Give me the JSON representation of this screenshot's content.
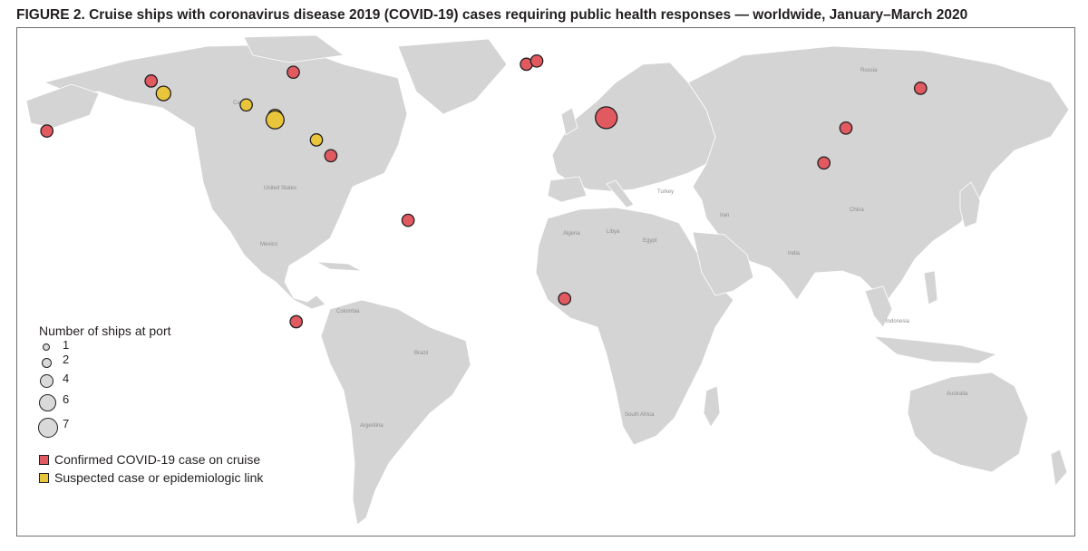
{
  "title": "FIGURE 2. Cruise ships with coronavirus disease 2019 (COVID-19) cases requiring public health responses — worldwide, January–March 2020",
  "colors": {
    "ocean": "#ffffff",
    "land": "#d4d4d4",
    "border": "#ffffff",
    "confirmed": "#e05a60",
    "suspected": "#e8c53a",
    "outline": "#231f20"
  },
  "country_labels": [
    "Canada",
    "United States",
    "Mexico",
    "Colombia",
    "Brazil",
    "Argentina",
    "Russia",
    "China",
    "India",
    "Egypt",
    "Libya",
    "Algeria",
    "Turkey",
    "Iran",
    "South Africa",
    "Australia",
    "Indonesia"
  ],
  "legend": {
    "size_title": "Number of ships at port",
    "sizes": [
      "1",
      "2",
      "4",
      "6",
      "7"
    ],
    "types": [
      {
        "label": "Confirmed COVID-19 case on cruise",
        "color": "#e05a60"
      },
      {
        "label": "Suspected case or epidemiologic link",
        "color": "#e8c53a"
      }
    ]
  },
  "ports": [
    {
      "status": "confirmed",
      "ships": 1,
      "lon": -157.9,
      "lat": 21.3
    },
    {
      "status": "confirmed",
      "ships": 1,
      "lon": -122.4,
      "lat": 37.8
    },
    {
      "status": "suspected",
      "ships": 2,
      "lon": -118.2,
      "lat": 33.7
    },
    {
      "status": "confirmed",
      "ships": 1,
      "lon": -74.0,
      "lat": 40.7
    },
    {
      "status": "suspected",
      "ships": 1,
      "lon": -90.0,
      "lat": 29.9
    },
    {
      "status": "suspected",
      "ships": 2,
      "lon": -80.2,
      "lat": 26.1
    },
    {
      "status": "suspected",
      "ships": 4,
      "lon": -80.2,
      "lat": 25.0
    },
    {
      "status": "suspected",
      "ships": 1,
      "lon": -66.1,
      "lat": 18.4
    },
    {
      "status": "confirmed",
      "ships": 1,
      "lon": -61.2,
      "lat": 13.2
    },
    {
      "status": "confirmed",
      "ships": 1,
      "lon": -34.9,
      "lat": -8.1
    },
    {
      "status": "confirmed",
      "ships": 1,
      "lon": -73.0,
      "lat": -41.5
    },
    {
      "status": "confirmed",
      "ships": 1,
      "lon": 5.4,
      "lat": 43.3
    },
    {
      "status": "confirmed",
      "ships": 1,
      "lon": 8.9,
      "lat": 44.4
    },
    {
      "status": "confirmed",
      "ships": 7,
      "lon": 32.6,
      "lat": 25.7
    },
    {
      "status": "confirmed",
      "ships": 1,
      "lon": 18.4,
      "lat": -33.9
    },
    {
      "status": "confirmed",
      "ships": 1,
      "lon": 114.2,
      "lat": 22.3
    },
    {
      "status": "confirmed",
      "ships": 1,
      "lon": 106.7,
      "lat": 10.8
    },
    {
      "status": "confirmed",
      "ships": 1,
      "lon": 139.6,
      "lat": 35.4
    }
  ]
}
